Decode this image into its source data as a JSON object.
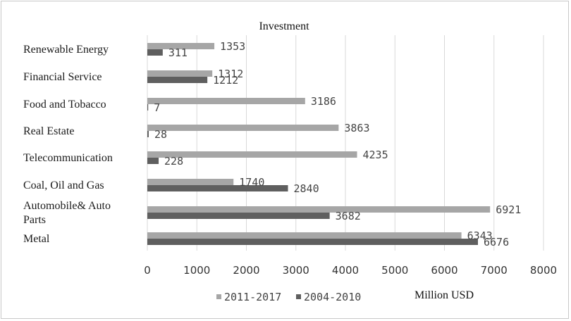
{
  "chart_data": {
    "type": "bar",
    "orientation": "horizontal",
    "title": "Investment",
    "xlabel": "Million USD",
    "ylabel": "",
    "xlim": [
      0,
      8000
    ],
    "x_ticks": [
      0,
      1000,
      2000,
      3000,
      4000,
      5000,
      6000,
      7000,
      8000
    ],
    "grid": "vertical",
    "legend_position": "bottom",
    "categories": [
      [
        "Renewable Energy"
      ],
      [
        "Financial Service"
      ],
      [
        "Food and Tobacco"
      ],
      [
        "Real Estate"
      ],
      [
        "Telecommunication"
      ],
      [
        "Coal, Oil and Gas"
      ],
      [
        "Automobile& Auto",
        "Parts"
      ],
      [
        "Metal"
      ]
    ],
    "series": [
      {
        "name": "2011-2017",
        "color": "#a6a6a6",
        "values": [
          1353,
          1312,
          3186,
          3863,
          4235,
          1740,
          6921,
          6343
        ]
      },
      {
        "name": "2004-2010",
        "color": "#5f5f5f",
        "values": [
          311,
          1212,
          7,
          28,
          228,
          2840,
          3682,
          6676
        ]
      }
    ]
  }
}
